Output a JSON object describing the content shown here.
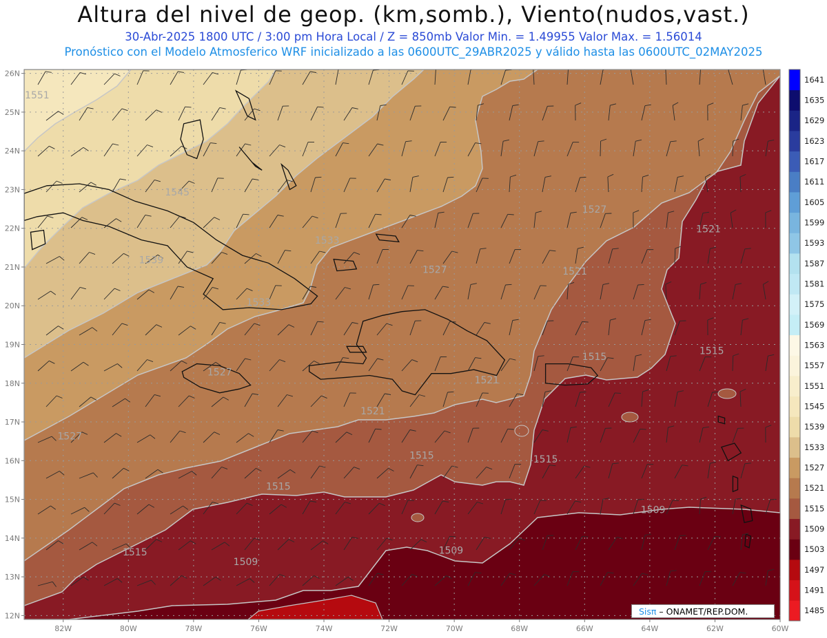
{
  "title": "Altura del nivel de geop. (km,somb.), Viento(nudos,vast.)",
  "subtitle": "30-Abr-2025   1800 UTC / 3:00 pm Hora Local / Z = 850mb     Valor Min. = 1.49955   Valor Max. = 1.56014",
  "model_line": "Pronóstico con el Modelo Atmosferico WRF inicializado a las 0600UTC_29ABR2025 y válido hasta las  0600UTC_02MAY2025",
  "credit": {
    "sis": "Sisπ",
    "rest": " – ONAMET/REP.DOM."
  },
  "lat_labels": [
    "26N",
    "25N",
    "24N",
    "23N",
    "22N",
    "21N",
    "20N",
    "19N",
    "18N",
    "17N",
    "16N",
    "15N",
    "14N",
    "13N",
    "12N"
  ],
  "lon_labels": [
    "82W",
    "80W",
    "78W",
    "76W",
    "74W",
    "72W",
    "70W",
    "68W",
    "66W",
    "64W",
    "62W",
    "60W"
  ],
  "contour_labels": [
    {
      "text": "1551",
      "lon": -82.8,
      "lat": 25.35
    },
    {
      "text": "1545",
      "lon": -78.5,
      "lat": 22.85
    },
    {
      "text": "1539",
      "lon": -79.3,
      "lat": 21.1
    },
    {
      "text": "1533",
      "lon": -73.9,
      "lat": 21.6
    },
    {
      "text": "1533",
      "lon": -76.0,
      "lat": 20.0
    },
    {
      "text": "1527",
      "lon": -77.2,
      "lat": 18.2
    },
    {
      "text": "1527",
      "lon": -81.8,
      "lat": 16.55
    },
    {
      "text": "1527",
      "lon": -65.7,
      "lat": 22.4
    },
    {
      "text": "1527",
      "lon": -70.6,
      "lat": 20.85
    },
    {
      "text": "1521",
      "lon": -66.3,
      "lat": 20.8
    },
    {
      "text": "1521",
      "lon": -62.2,
      "lat": 21.9
    },
    {
      "text": "1521",
      "lon": -72.5,
      "lat": 17.2
    },
    {
      "text": "1521",
      "lon": -69.0,
      "lat": 18.0
    },
    {
      "text": "1515",
      "lon": -65.7,
      "lat": 18.6
    },
    {
      "text": "1515",
      "lon": -62.1,
      "lat": 18.75
    },
    {
      "text": "1515",
      "lon": -71.0,
      "lat": 16.05
    },
    {
      "text": "1515",
      "lon": -67.2,
      "lat": 15.95
    },
    {
      "text": "1515",
      "lon": -75.4,
      "lat": 15.25
    },
    {
      "text": "1515",
      "lon": -79.8,
      "lat": 13.55
    },
    {
      "text": "1509",
      "lon": -76.4,
      "lat": 13.3
    },
    {
      "text": "1509",
      "lon": -70.1,
      "lat": 13.6
    },
    {
      "text": "1509",
      "lon": -63.9,
      "lat": 14.65
    }
  ],
  "colorbar": [
    {
      "label": "1485",
      "color": "#ec1b22"
    },
    {
      "label": "1491",
      "color": "#d51219"
    },
    {
      "label": "1497",
      "color": "#b50a0f"
    },
    {
      "label": "1503",
      "color": "#6a0012"
    },
    {
      "label": "1509",
      "color": "#881a24"
    },
    {
      "label": "1515",
      "color": "#a55940"
    },
    {
      "label": "1521",
      "color": "#b67a4e"
    },
    {
      "label": "1527",
      "color": "#c99a62"
    },
    {
      "label": "1533",
      "color": "#dcbf8b"
    },
    {
      "label": "1539",
      "color": "#eedcaa"
    },
    {
      "label": "1545",
      "color": "#f5e7bd"
    },
    {
      "label": "1551",
      "color": "#f8eecc"
    },
    {
      "label": "1557",
      "color": "#fbf4dc"
    },
    {
      "label": "1563",
      "color": "#fdf8e6"
    },
    {
      "label": "1569",
      "color": "#c5eef6"
    },
    {
      "label": "1575",
      "color": "#d3f1f8"
    },
    {
      "label": "1581",
      "color": "#c0e8f4"
    },
    {
      "label": "1587",
      "color": "#b3e1ef"
    },
    {
      "label": "1593",
      "color": "#8fc6e6"
    },
    {
      "label": "1599",
      "color": "#79b5df"
    },
    {
      "label": "1605",
      "color": "#5f9ed7"
    },
    {
      "label": "1611",
      "color": "#4a7ec5"
    },
    {
      "label": "1617",
      "color": "#3b5cb6"
    },
    {
      "label": "1623",
      "color": "#2a3c9e"
    },
    {
      "label": "1629",
      "color": "#1a2486"
    },
    {
      "label": "1635",
      "color": "#0d0d6e"
    },
    {
      "label": "1641",
      "color": "#0000ff"
    }
  ]
}
